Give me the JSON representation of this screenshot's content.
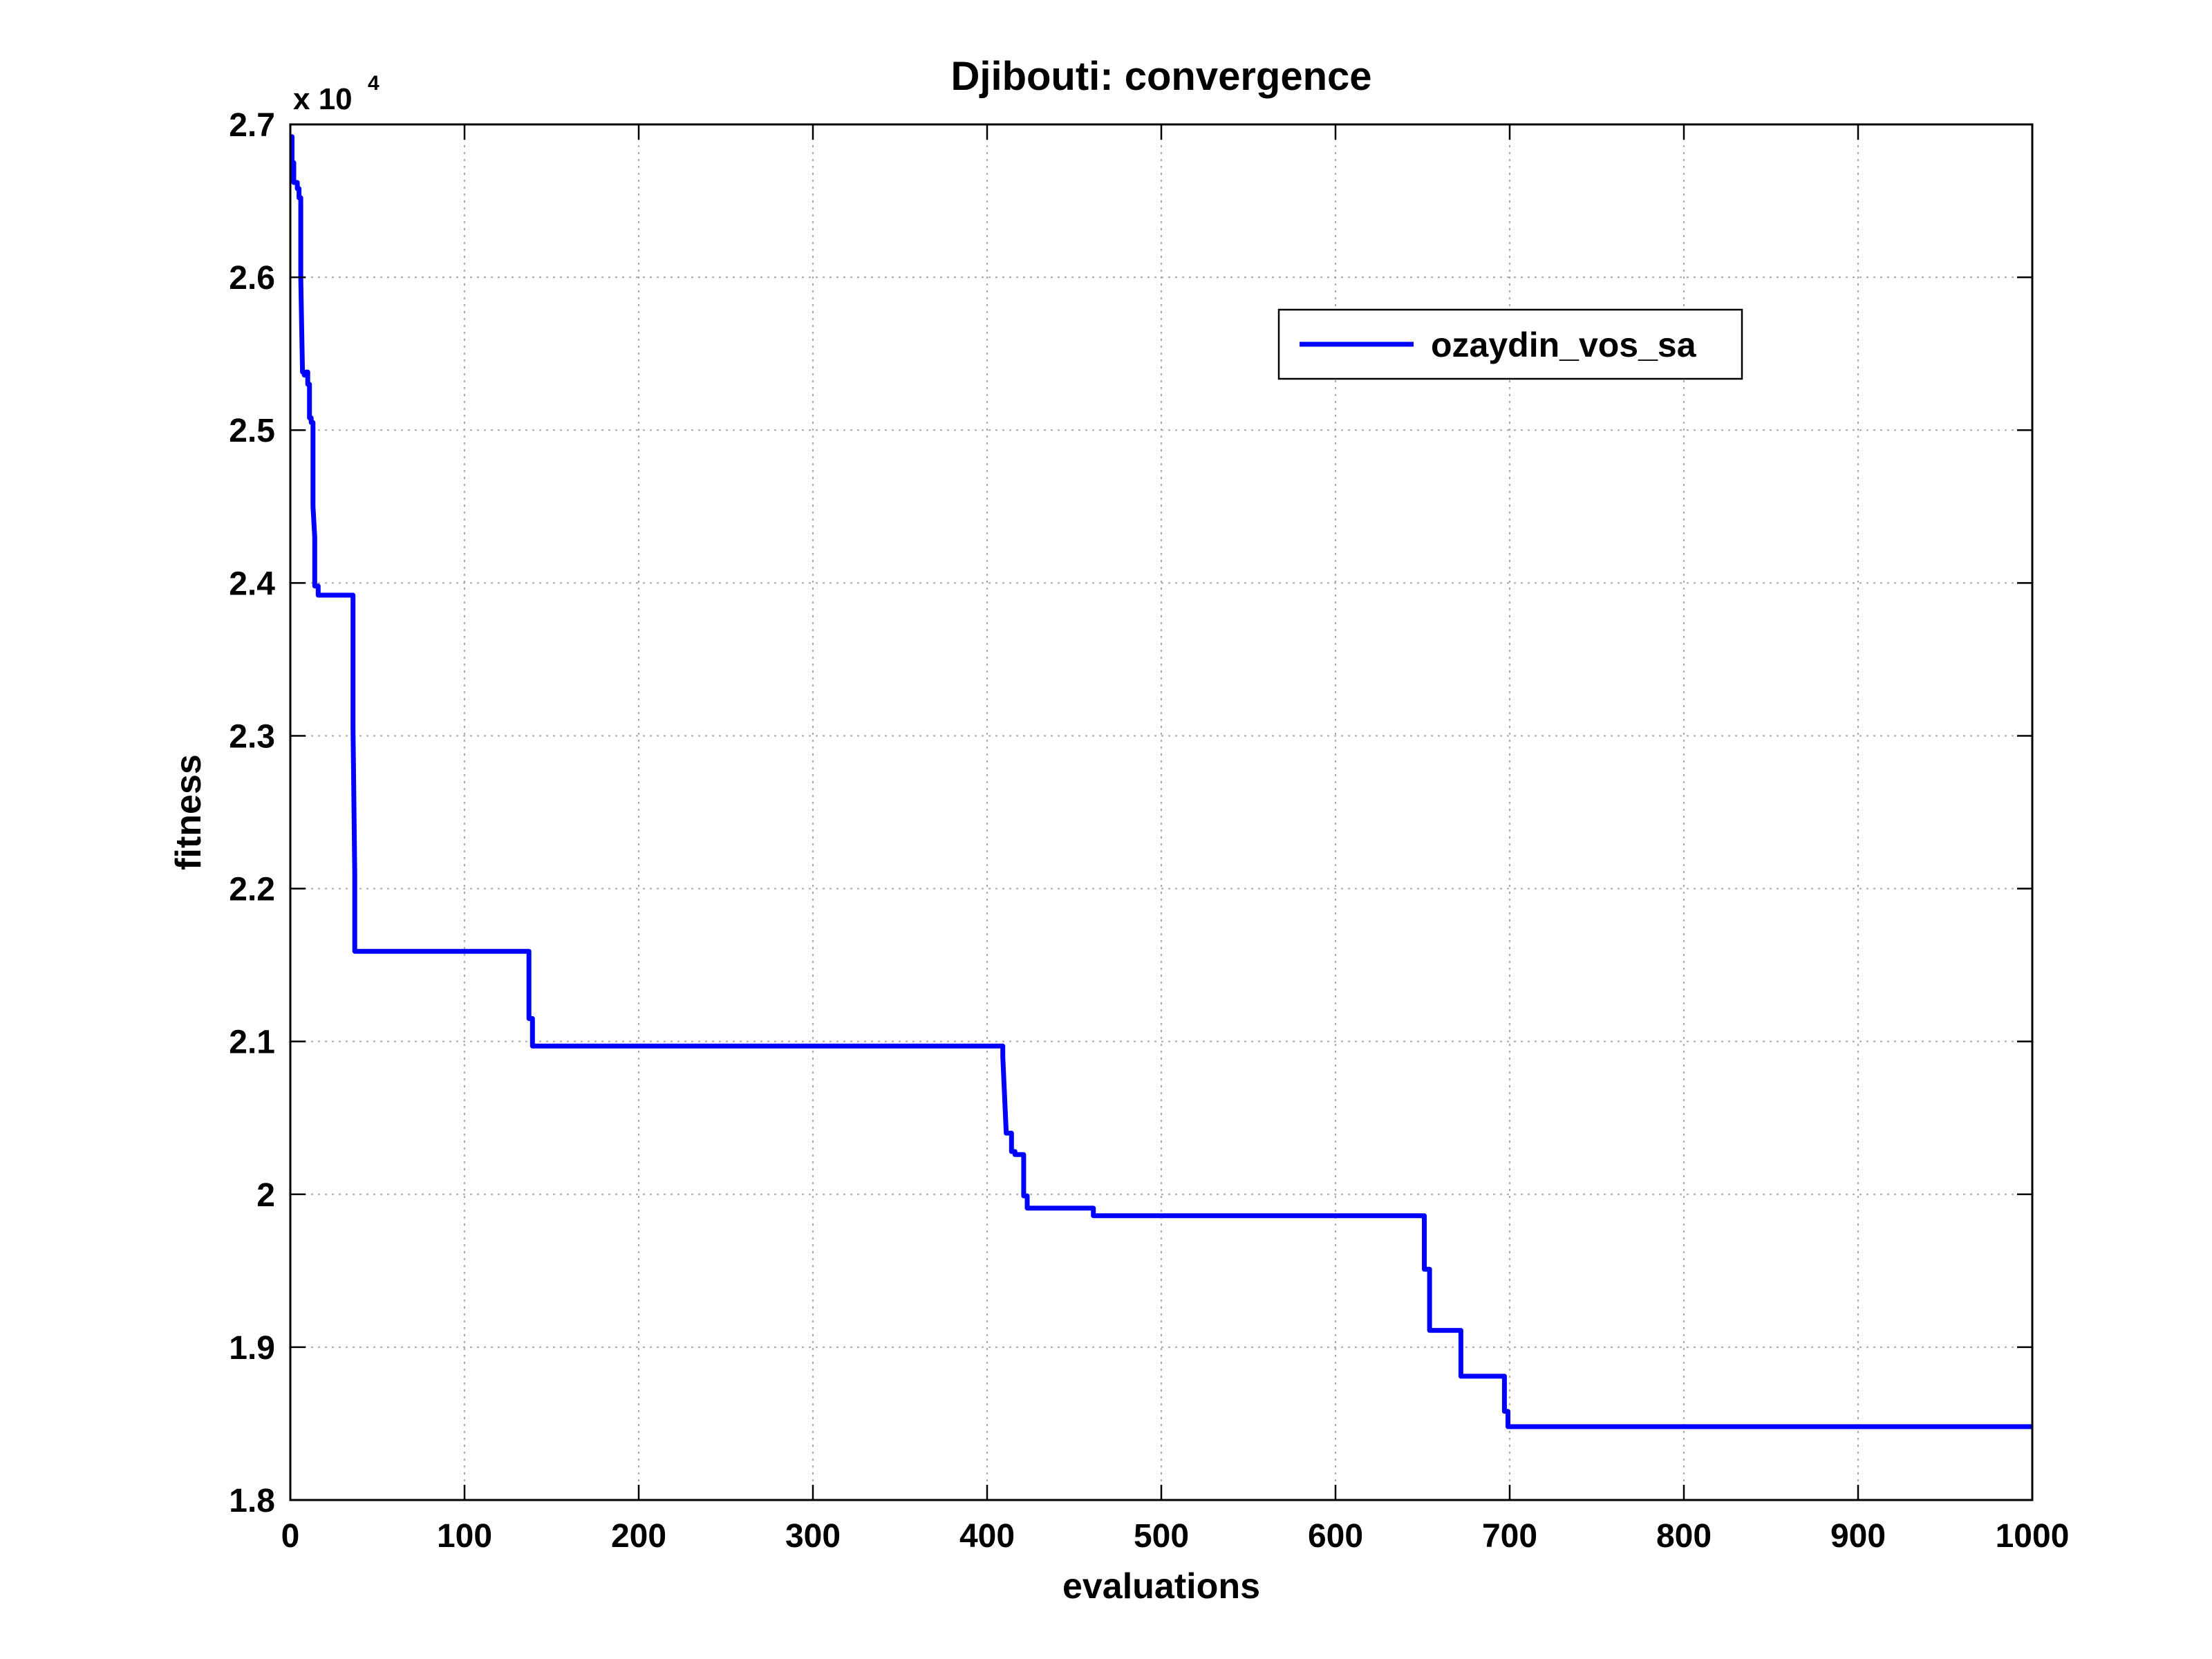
{
  "chart_data": {
    "type": "line",
    "title": "Djibouti: convergence",
    "xlabel": "evaluations",
    "ylabel": "fitness",
    "y_multiplier": {
      "base": "x 10",
      "exponent": "4"
    },
    "xlim": [
      0,
      1000
    ],
    "ylim": [
      1.8,
      2.7
    ],
    "x_ticks": [
      0,
      100,
      200,
      300,
      400,
      500,
      600,
      700,
      800,
      900,
      1000
    ],
    "x_tick_labels": [
      "0",
      "100",
      "200",
      "300",
      "400",
      "500",
      "600",
      "700",
      "800",
      "900",
      "1000"
    ],
    "y_ticks": [
      1.8,
      1.9,
      2.0,
      2.1,
      2.2,
      2.3,
      2.4,
      2.5,
      2.6,
      2.7
    ],
    "y_tick_labels": [
      "1.8",
      "1.9",
      "2",
      "2.1",
      "2.2",
      "2.3",
      "2.4",
      "2.5",
      "2.6",
      "2.7"
    ],
    "grid": true,
    "legend_position": "top-right",
    "series": [
      {
        "name": "ozaydin_vos_sa",
        "color": "#0000ff",
        "x": [
          0,
          1,
          1,
          2,
          2,
          4,
          4,
          5,
          5,
          6,
          6,
          6,
          7,
          8,
          8,
          9,
          9,
          10,
          10,
          11,
          11,
          12,
          12,
          13,
          13,
          14,
          14,
          16,
          16,
          36,
          36,
          37,
          37,
          137,
          137,
          139,
          139,
          409,
          409,
          411,
          411,
          414,
          414,
          416,
          416,
          421,
          421,
          423,
          423,
          461,
          461,
          651,
          651,
          654,
          654,
          672,
          672,
          697,
          697,
          699,
          699,
          1000
        ],
        "y": [
          2.692,
          2.692,
          2.675,
          2.675,
          2.662,
          2.662,
          2.658,
          2.658,
          2.652,
          2.652,
          2.635,
          2.6,
          2.538,
          2.538,
          2.536,
          2.536,
          2.538,
          2.538,
          2.53,
          2.53,
          2.508,
          2.508,
          2.505,
          2.505,
          2.45,
          2.43,
          2.398,
          2.398,
          2.392,
          2.392,
          2.305,
          2.21,
          2.159,
          2.159,
          2.115,
          2.115,
          2.097,
          2.097,
          2.09,
          2.04,
          2.04,
          2.04,
          2.028,
          2.028,
          2.026,
          2.026,
          1.999,
          1.999,
          1.991,
          1.991,
          1.986,
          1.986,
          1.951,
          1.951,
          1.911,
          1.911,
          1.881,
          1.881,
          1.858,
          1.858,
          1.848,
          1.848
        ]
      }
    ]
  }
}
